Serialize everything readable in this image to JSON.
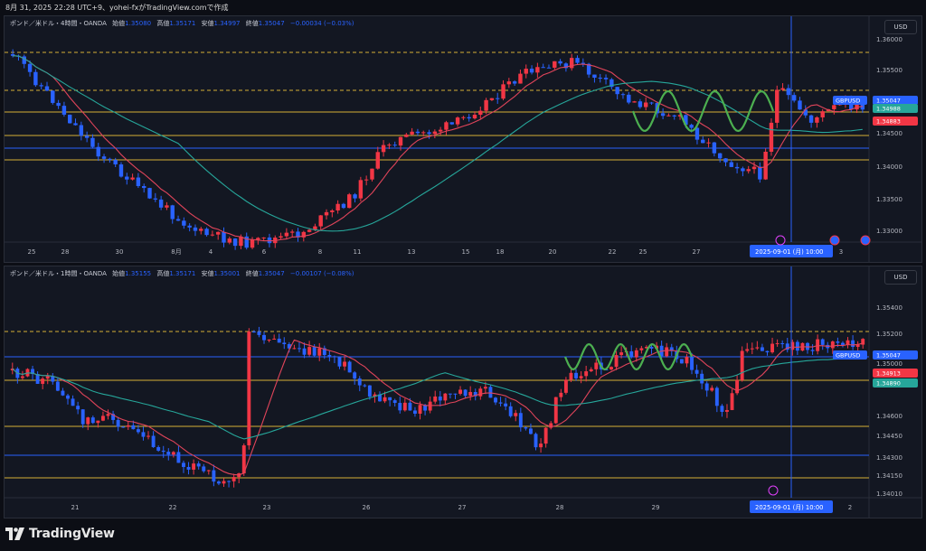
{
  "header": {
    "date_line": "8月 31, 2025 22:28 UTC+9、yohei-fxがTradingView.comで作成"
  },
  "colors": {
    "background": "#131722",
    "up_candle": "#f23645",
    "down_candle": "#2962ff",
    "ma_fast": "#e0445a",
    "ma_slow": "#26a69a",
    "level_gold": "#d4af37",
    "level_blue": "#2962ff",
    "wave_green": "#4caf50"
  },
  "top_chart": {
    "legend": {
      "symbol": "ポンド／米ドル・4時間・OANDA",
      "open_label": "始値",
      "open": "1.35080",
      "high_label": "高値",
      "high": "1.35171",
      "low_label": "安値",
      "low": "1.34997",
      "close_label": "終値",
      "close": "1.35047",
      "change": "−0.00034 (−0.03%)"
    },
    "currency_button": "USD",
    "price_ticks": [
      "1.36000",
      "1.35500",
      "1.35000",
      "1.34500",
      "1.34000",
      "1.33500",
      "1.33000"
    ],
    "date_ticks": [
      "25",
      "28",
      "30",
      "8月",
      "4",
      "6",
      "8",
      "11",
      "13",
      "15",
      "18",
      "20",
      "22",
      "25",
      "27",
      "3"
    ],
    "price_tags": {
      "symbol": "GBPUSD",
      "last": "1.35047",
      "ma_slow": "1.34988",
      "ma_fast": "1.34883"
    },
    "crosshair_date": "2025-09-01 (月)",
    "crosshair_time": "10:00"
  },
  "bottom_chart": {
    "legend": {
      "symbol": "ポンド／米ドル・1時間・OANDA",
      "open_label": "始値",
      "open": "1.35155",
      "high_label": "高値",
      "high": "1.35171",
      "low_label": "安値",
      "low": "1.35001",
      "close_label": "終値",
      "close": "1.35047",
      "change": "−0.00107 (−0.08%)"
    },
    "currency_button": "USD",
    "price_ticks": [
      "1.35400",
      "1.35200",
      "1.35000",
      "1.34600",
      "1.34450",
      "1.34300",
      "1.34150",
      "1.34010"
    ],
    "date_ticks": [
      "21",
      "22",
      "23",
      "26",
      "27",
      "28",
      "29",
      "2"
    ],
    "price_tags": {
      "symbol": "GBPUSD",
      "last": "1.35047",
      "ma_fast": "1.34913",
      "ma_slow": "1.34890"
    },
    "crosshair_date": "2025-09-01 (月)",
    "crosshair_time": "10:00"
  },
  "footer": {
    "brand": "TradingView"
  }
}
